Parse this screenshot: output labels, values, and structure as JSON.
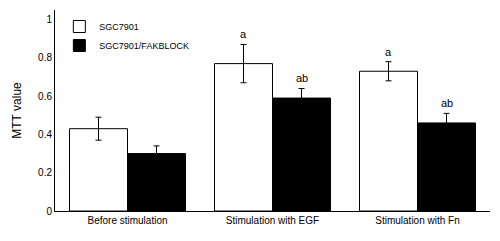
{
  "chart_data": {
    "type": "bar",
    "ylabel": "MTT value",
    "categories": [
      "Before stimulation",
      "Stimulation with EGF",
      "Stimulation with Fn"
    ],
    "series": [
      {
        "name": "SGC7901",
        "color": "#ffffff",
        "values": [
          0.43,
          0.77,
          0.73
        ],
        "errors": [
          0.06,
          0.1,
          0.05
        ],
        "annotations": [
          null,
          "a",
          "a"
        ]
      },
      {
        "name": "SGC7901/FAKBLOCK",
        "color": "#000000",
        "values": [
          0.3,
          0.59,
          0.46
        ],
        "errors": [
          0.04,
          0.05,
          0.05
        ],
        "annotations": [
          null,
          "ab",
          "ab"
        ]
      }
    ],
    "ylim": [
      0,
      1.05
    ],
    "yticks": [
      0,
      0.2,
      0.4,
      0.6,
      0.8,
      1.0
    ],
    "grid": false,
    "legend": "upper left"
  }
}
